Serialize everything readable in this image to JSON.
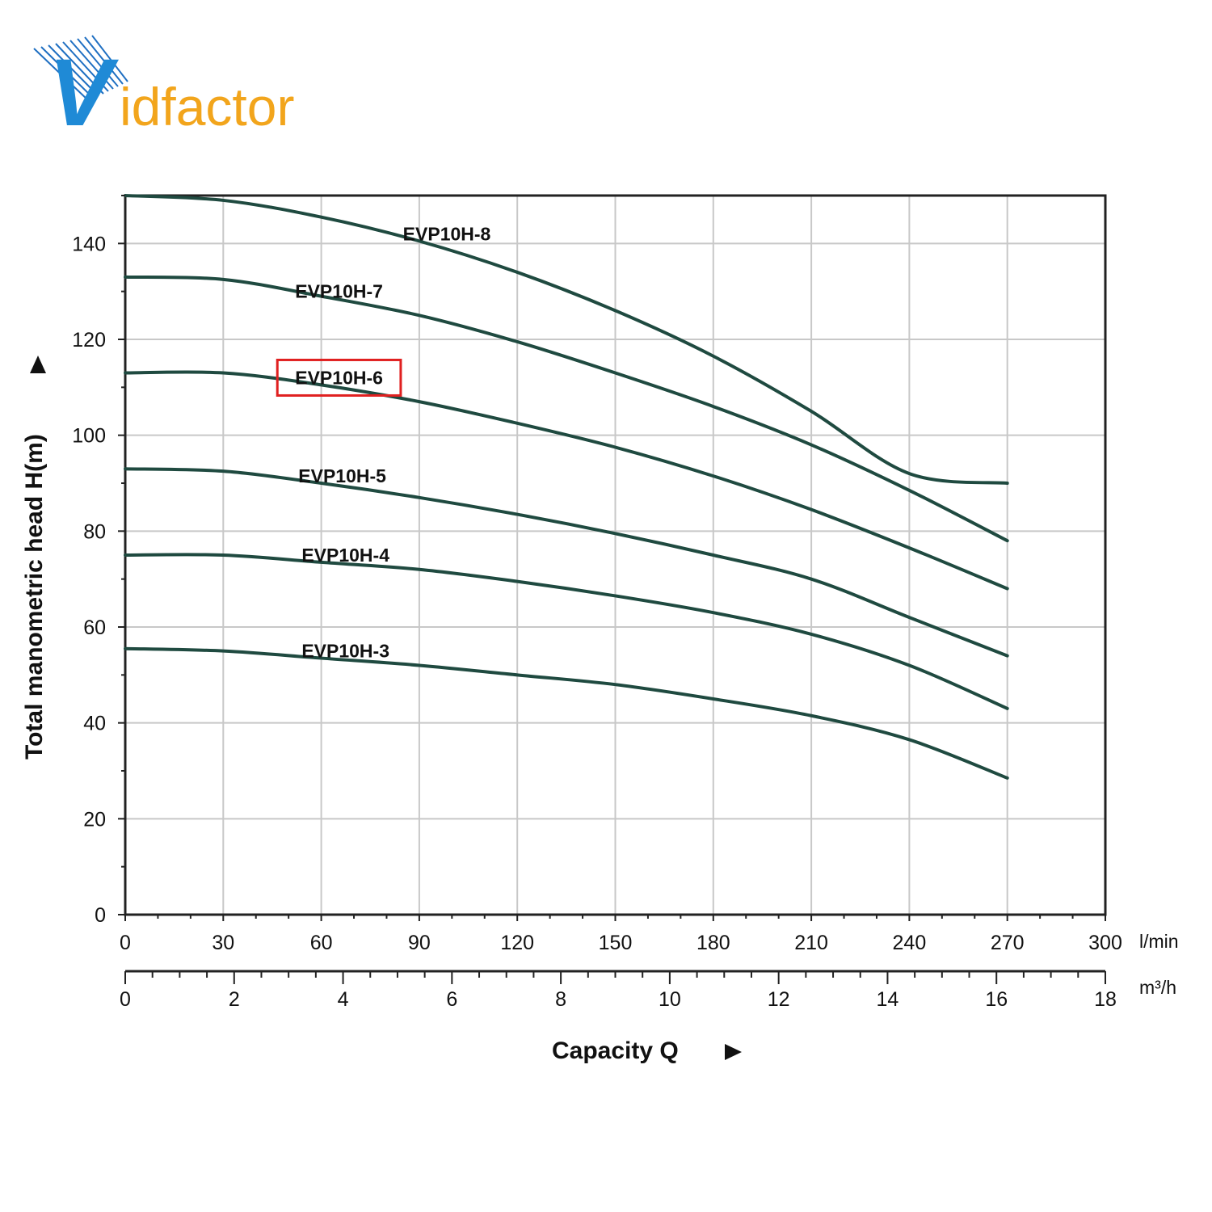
{
  "logo": {
    "text": "Vidfactor",
    "letter_v": "V",
    "rest": "idfactor",
    "colors": {
      "v": "#1f8ad6",
      "rest": "#f2a51c",
      "bird": "#1f6fc2"
    }
  },
  "chart_data": {
    "type": "line",
    "xlabel": "Capacity Q",
    "ylabel": "Total manometric head H(m)",
    "x_unit": "l/min",
    "x2_unit": "m³/h",
    "xlim": [
      0,
      300
    ],
    "ylim": [
      0,
      150
    ],
    "x_ticks": [
      "0",
      "30",
      "60",
      "90",
      "120",
      "150",
      "180",
      "210",
      "240",
      "270",
      "300"
    ],
    "x2_ticks": [
      "0",
      "2",
      "4",
      "6",
      "8",
      "10",
      "12",
      "14",
      "16",
      "18"
    ],
    "y_ticks": [
      "0",
      "20",
      "40",
      "60",
      "80",
      "100",
      "120",
      "140"
    ],
    "grid": true,
    "curve_color": "#1f4a40",
    "highlight_color": "#e02020",
    "highlighted_series": "EVP10H-6",
    "series": [
      {
        "name": "EVP10H-8",
        "x": [
          0,
          30,
          60,
          90,
          120,
          150,
          180,
          210,
          240,
          270
        ],
        "values": [
          150,
          149,
          145.5,
          140.5,
          134,
          126,
          116.5,
          105,
          92,
          90
        ]
      },
      {
        "name": "EVP10H-7",
        "x": [
          0,
          30,
          60,
          90,
          120,
          150,
          180,
          210,
          240,
          270
        ],
        "values": [
          133,
          132.5,
          129,
          125,
          119.5,
          113,
          106,
          98,
          88.5,
          78
        ]
      },
      {
        "name": "EVP10H-6",
        "x": [
          0,
          30,
          60,
          90,
          120,
          150,
          180,
          210,
          240,
          270
        ],
        "values": [
          113,
          113,
          110.5,
          107,
          102.5,
          97.5,
          91.5,
          84.5,
          76.5,
          68
        ]
      },
      {
        "name": "EVP10H-5",
        "x": [
          0,
          30,
          60,
          90,
          120,
          150,
          180,
          210,
          240,
          270
        ],
        "values": [
          93,
          92.5,
          90,
          87,
          83.5,
          79.5,
          75,
          70,
          62,
          54
        ]
      },
      {
        "name": "EVP10H-4",
        "x": [
          0,
          30,
          60,
          90,
          120,
          150,
          180,
          210,
          240,
          270
        ],
        "values": [
          75,
          75,
          73.5,
          72,
          69.5,
          66.5,
          63,
          58.5,
          52,
          43
        ]
      },
      {
        "name": "EVP10H-3",
        "x": [
          0,
          30,
          60,
          90,
          120,
          150,
          180,
          210,
          240,
          270
        ],
        "values": [
          55.5,
          55,
          53.5,
          52,
          50,
          48,
          45,
          41.5,
          36.5,
          28.5
        ]
      }
    ]
  }
}
